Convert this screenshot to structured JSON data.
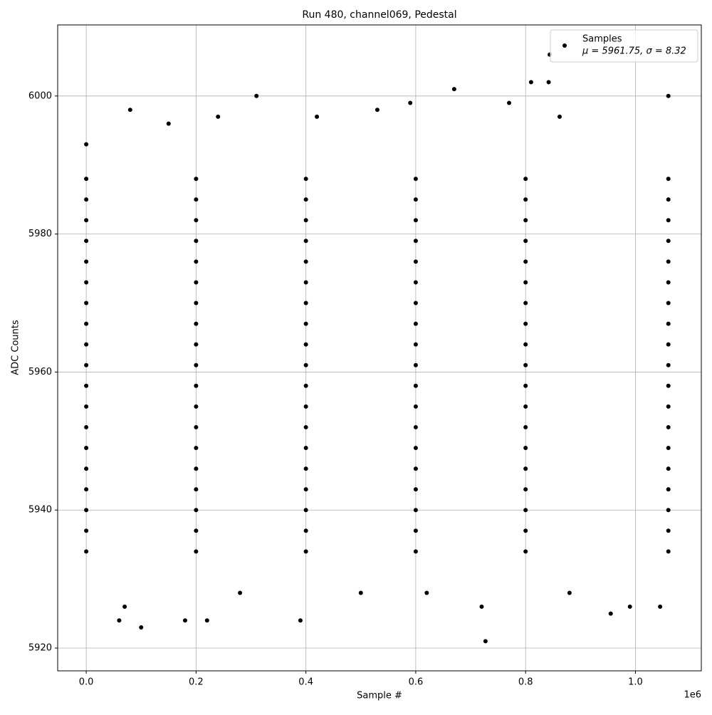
{
  "chart_data": {
    "type": "scatter",
    "title": "Run 480, channel069, Pedestal",
    "x_label": "Sample #",
    "y_label": "ADC Counts",
    "x_offset_label": "1e6",
    "annotation": "μ = 5961.75, σ = 8.32",
    "xlim": [
      -52000,
      1120000
    ],
    "ylim": [
      5916.7,
      6010.3
    ],
    "xticks": [
      {
        "value": 0,
        "label": "0.0"
      },
      {
        "value": 200000,
        "label": "0.2"
      },
      {
        "value": 400000,
        "label": "0.4"
      },
      {
        "value": 600000,
        "label": "0.6"
      },
      {
        "value": 800000,
        "label": "0.8"
      },
      {
        "value": 1000000,
        "label": "1.0"
      }
    ],
    "yticks": [
      5920,
      5940,
      5960,
      5980,
      6000
    ],
    "grid": true,
    "legend": "upper right",
    "series": [
      {
        "name": "Samples",
        "color": "#000000",
        "x": [
          0,
          200000,
          400000,
          600000,
          800000,
          1060000,
          0,
          200000,
          400000,
          600000,
          800000,
          1060000,
          0,
          200000,
          400000,
          600000,
          800000,
          1060000,
          0,
          200000,
          400000,
          600000,
          800000,
          1060000,
          0,
          200000,
          400000,
          600000,
          800000,
          1060000,
          0,
          200000,
          400000,
          600000,
          800000,
          1060000,
          0,
          200000,
          400000,
          600000,
          800000,
          1060000,
          0,
          200000,
          400000,
          600000,
          800000,
          1060000,
          0,
          200000,
          400000,
          600000,
          800000,
          1060000,
          0,
          200000,
          400000,
          600000,
          800000,
          1060000,
          0,
          200000,
          400000,
          600000,
          800000,
          1060000,
          0,
          200000,
          400000,
          600000,
          800000,
          1060000,
          0,
          200000,
          400000,
          600000,
          800000,
          1060000,
          0,
          200000,
          400000,
          600000,
          800000,
          1060000,
          0,
          200000,
          400000,
          600000,
          800000,
          1060000,
          0,
          200000,
          400000,
          600000,
          800000,
          1060000,
          0,
          200000,
          400000,
          600000,
          800000,
          1060000,
          0,
          200000,
          400000,
          600000,
          800000,
          1060000,
          0,
          200000,
          400000,
          600000,
          800000,
          1060000,
          0,
          60000,
          70000,
          80000,
          100000,
          180000,
          220000,
          310000,
          390000,
          670000,
          590000,
          720000,
          727000,
          770000,
          810000,
          842000,
          844000,
          862000,
          955000,
          990000,
          1045000,
          1060000,
          530000,
          240000,
          420000,
          150000,
          500000,
          880000,
          280000,
          620000
        ],
        "values": [
          5934,
          5934,
          5934,
          5934,
          5934,
          5934,
          5937,
          5937,
          5937,
          5937,
          5937,
          5937,
          5940,
          5940,
          5940,
          5940,
          5940,
          5940,
          5943,
          5943,
          5943,
          5943,
          5943,
          5943,
          5946,
          5946,
          5946,
          5946,
          5946,
          5946,
          5949,
          5949,
          5949,
          5949,
          5949,
          5949,
          5952,
          5952,
          5952,
          5952,
          5952,
          5952,
          5955,
          5955,
          5955,
          5955,
          5955,
          5955,
          5958,
          5958,
          5958,
          5958,
          5958,
          5958,
          5961,
          5961,
          5961,
          5961,
          5961,
          5961,
          5964,
          5964,
          5964,
          5964,
          5964,
          5964,
          5967,
          5967,
          5967,
          5967,
          5967,
          5967,
          5970,
          5970,
          5970,
          5970,
          5970,
          5970,
          5973,
          5973,
          5973,
          5973,
          5973,
          5973,
          5976,
          5976,
          5976,
          5976,
          5976,
          5976,
          5979,
          5979,
          5979,
          5979,
          5979,
          5979,
          5982,
          5982,
          5982,
          5982,
          5982,
          5982,
          5985,
          5985,
          5985,
          5985,
          5985,
          5985,
          5988,
          5988,
          5988,
          5988,
          5988,
          5988,
          5993,
          5924,
          5926,
          5998,
          5923,
          5924,
          5924,
          6000,
          5924,
          6001,
          5999,
          5926,
          5921,
          5999,
          6002,
          6002,
          6006,
          5997,
          5925,
          5926,
          5926,
          6000,
          5998,
          5997,
          5997,
          5996,
          5928,
          5928,
          5928,
          5928
        ]
      }
    ]
  }
}
